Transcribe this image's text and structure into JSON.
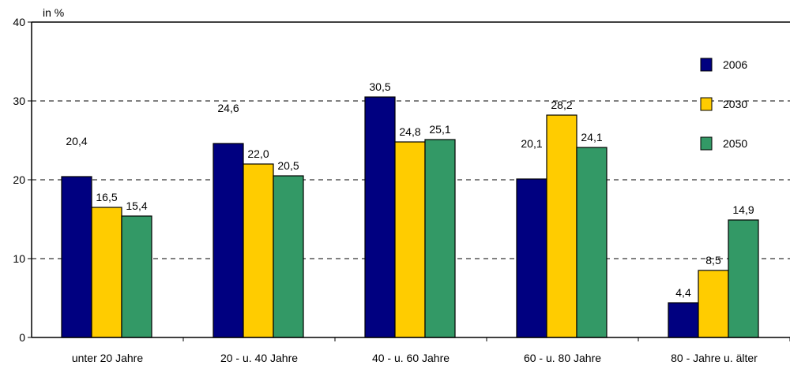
{
  "chart_data": {
    "type": "bar",
    "unit_label": "in %",
    "categories": [
      "unter 20 Jahre",
      "20 - u. 40 Jahre",
      "40 - u. 60 Jahre",
      "60 - u. 80 Jahre",
      "80 - Jahre u. älter"
    ],
    "series": [
      {
        "name": "2006",
        "color": "#000080",
        "values": [
          20.4,
          24.6,
          30.5,
          20.1,
          4.4
        ],
        "labels": [
          "20,4",
          "24,6",
          "30,5",
          "20,1",
          "4,4"
        ]
      },
      {
        "name": "2030",
        "color": "#FFCC00",
        "values": [
          16.5,
          22.0,
          24.8,
          28.2,
          8.5
        ],
        "labels": [
          "16,5",
          "22,0",
          "24,8",
          "28,2",
          "8,5"
        ]
      },
      {
        "name": "2050",
        "color": "#339966",
        "values": [
          15.4,
          20.5,
          25.1,
          24.1,
          14.9
        ],
        "labels": [
          "15,4",
          "20,5",
          "25,1",
          "24,1",
          "14,9"
        ]
      }
    ],
    "ylim": [
      0,
      40
    ],
    "yticks": [
      "0",
      "10",
      "20",
      "30",
      "40"
    ],
    "grid": true,
    "legend_position": "top-right"
  }
}
